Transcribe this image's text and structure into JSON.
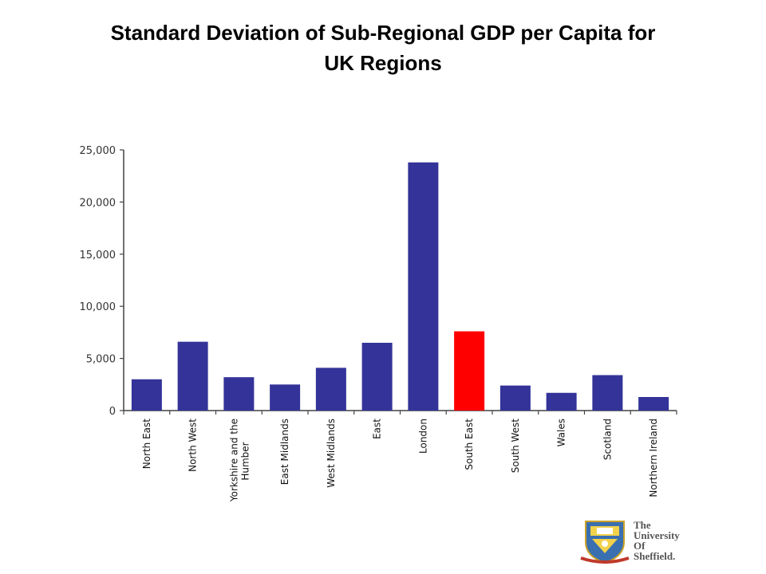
{
  "title_line1": "Standard Deviation of Sub-Regional GDP per Capita for",
  "title_line2": "UK Regions",
  "logo": {
    "line1": "The",
    "line2": "University",
    "line3": "Of",
    "line4": "Sheffield."
  },
  "colors": {
    "bar": "#333399",
    "highlight": "#ff0000",
    "axis": "#444444"
  },
  "chart_data": {
    "type": "bar",
    "title": "Standard Deviation of Sub-Regional GDP per Capita for UK Regions",
    "xlabel": "",
    "ylabel": "",
    "categories": [
      "North East",
      "North West",
      "Yorkshire and the Humber",
      "East Midlands",
      "West Midlands",
      "East",
      "London",
      "South East",
      "South West",
      "Wales",
      "Scotland",
      "Northern Ireland"
    ],
    "values": [
      3000,
      6600,
      3200,
      2500,
      4100,
      6500,
      23800,
      7600,
      2400,
      1700,
      3400,
      1300
    ],
    "highlight": [
      "South East"
    ],
    "ylim": [
      0,
      25000
    ],
    "yticks": [
      0,
      5000,
      10000,
      15000,
      20000,
      25000
    ],
    "ytick_labels": [
      "0",
      "5,000",
      "10,000",
      "15,000",
      "20,000",
      "25,000"
    ],
    "grid": false,
    "legend": "none"
  }
}
